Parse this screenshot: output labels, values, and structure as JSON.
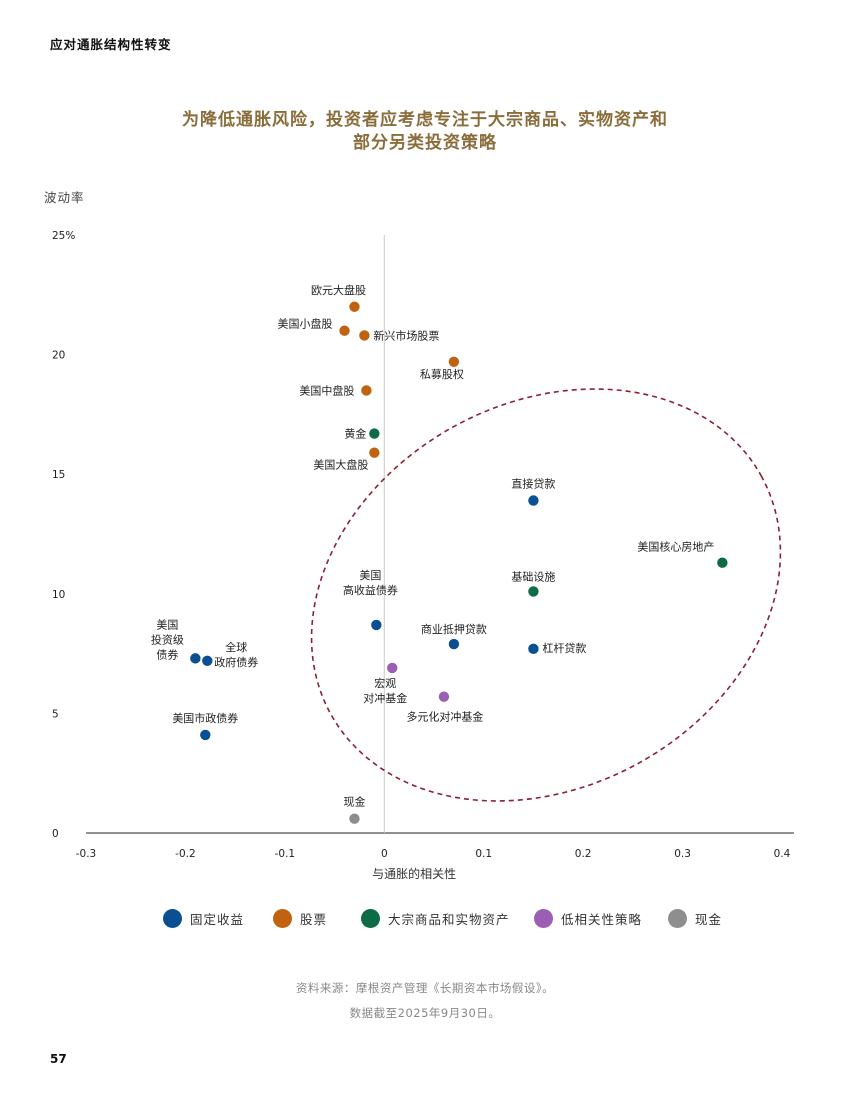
{
  "header": "应对通胀结构性转变",
  "title": [
    "为降低通胀风险，投资者应考虑专注于大宗商品、实物资产和",
    "部分另类投资策略"
  ],
  "source": [
    "资料来源：摩根资产管理《长期资本市场假设》。",
    "数据截至2025年9月30日。"
  ],
  "page_number": "57",
  "chart_data": {
    "type": "scatter",
    "title": "为降低通胀风险，投资者应考虑专注于大宗商品、实物资产和部分另类投资策略",
    "xlabel": "与通胀的相关性",
    "ylabel": "波动率",
    "xlim": [
      -0.3,
      0.4
    ],
    "ylim": [
      0,
      25
    ],
    "x_ticks": [
      "-0.3",
      "-0.2",
      "-0.1",
      "0",
      "0.1",
      "0.2",
      "0.3",
      "0.4"
    ],
    "y_ticks": [
      "0",
      "5",
      "10",
      "15",
      "20",
      "25%"
    ],
    "grid": false,
    "legend_position": "bottom",
    "categories": [
      {
        "key": "fixed_income",
        "name": "固定收益",
        "color": "#0b4f93"
      },
      {
        "key": "equity",
        "name": "股票",
        "color": "#c0620f"
      },
      {
        "key": "real_assets",
        "name": "大宗商品和实物资产",
        "color": "#0d6b45"
      },
      {
        "key": "low_corr",
        "name": "低相关性策略",
        "color": "#9b5fb5"
      },
      {
        "key": "cash",
        "name": "现金",
        "color": "#8e8e8e"
      }
    ],
    "points": [
      {
        "label": [
          "欧元大盘股"
        ],
        "category": "equity",
        "x": -0.03,
        "y": 22.0
      },
      {
        "label": [
          "美国小盘股"
        ],
        "category": "equity",
        "x": -0.04,
        "y": 21.0
      },
      {
        "label": [
          "新兴市场股票"
        ],
        "category": "equity",
        "x": -0.02,
        "y": 20.8
      },
      {
        "label": [
          "私募股权"
        ],
        "category": "equity",
        "x": 0.07,
        "y": 19.7
      },
      {
        "label": [
          "美国中盘股"
        ],
        "category": "equity",
        "x": -0.018,
        "y": 18.5
      },
      {
        "label": [
          "黄金"
        ],
        "category": "real_assets",
        "x": -0.01,
        "y": 16.7
      },
      {
        "label": [
          "美国大盘股"
        ],
        "category": "equity",
        "x": -0.01,
        "y": 15.9
      },
      {
        "label": [
          "直接贷款"
        ],
        "category": "fixed_income",
        "x": 0.15,
        "y": 13.9
      },
      {
        "label": [
          "美国核心房地产"
        ],
        "category": "real_assets",
        "x": 0.34,
        "y": 11.3
      },
      {
        "label": [
          "基础设施"
        ],
        "category": "real_assets",
        "x": 0.15,
        "y": 10.1
      },
      {
        "label": [
          "美国",
          "高收益债券"
        ],
        "category": "fixed_income",
        "x": -0.008,
        "y": 8.7
      },
      {
        "label": [
          "商业抵押贷款"
        ],
        "category": "fixed_income",
        "x": 0.07,
        "y": 7.9
      },
      {
        "label": [
          "杠杆贷款"
        ],
        "category": "fixed_income",
        "x": 0.15,
        "y": 7.7
      },
      {
        "label": [
          "美国",
          "投资级",
          "债券"
        ],
        "category": "fixed_income",
        "x": -0.19,
        "y": 7.3
      },
      {
        "label": [
          "全球",
          "政府债券"
        ],
        "category": "fixed_income",
        "x": -0.178,
        "y": 7.2
      },
      {
        "label": [
          "宏观",
          "对冲基金"
        ],
        "category": "low_corr",
        "x": 0.008,
        "y": 6.9
      },
      {
        "label": [
          "多元化对冲基金"
        ],
        "category": "low_corr",
        "x": 0.06,
        "y": 5.7
      },
      {
        "label": [
          "美国市政债券"
        ],
        "category": "fixed_income",
        "x": -0.18,
        "y": 4.1
      },
      {
        "label": [
          "现金"
        ],
        "category": "cash",
        "x": -0.03,
        "y": 0.6
      }
    ],
    "ellipse_color": "#8b2035"
  }
}
